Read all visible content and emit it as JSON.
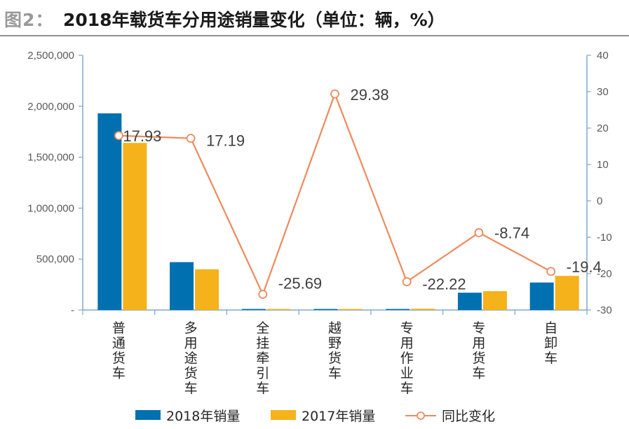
{
  "header": {
    "figure_label": "图2：",
    "figure_title": "2018年载货车分用途销量变化（单位：辆，%）"
  },
  "chart_data": {
    "type": "bar",
    "title": "2018年载货车分用途销量变化（单位：辆，%）",
    "categories": [
      "普通货车",
      "多用途货车",
      "全挂牵引车",
      "越野货车",
      "专用作业车",
      "专用货车",
      "自卸车"
    ],
    "series": [
      {
        "name": "2018年销量",
        "type": "bar",
        "axis": "left",
        "color": "#0070b0",
        "values": [
          1930000,
          470000,
          2000,
          8000,
          10000,
          170000,
          270000
        ]
      },
      {
        "name": "2017年销量",
        "type": "bar",
        "axis": "left",
        "color": "#f5b21a",
        "values": [
          1640000,
          400000,
          1500,
          6000,
          13000,
          185000,
          335000
        ]
      },
      {
        "name": "同比变化",
        "type": "line",
        "axis": "right",
        "color": "#ef8a5c",
        "values": [
          17.93,
          17.19,
          -25.69,
          29.38,
          -22.22,
          -8.74,
          -19.4
        ]
      }
    ],
    "data_labels": [
      "17.93",
      "17.19",
      "-25.69",
      "29.38",
      "-22.22",
      "-8.74",
      "-19.4"
    ],
    "y_left": {
      "min": 0,
      "max": 2500000,
      "ticks": [
        "-",
        "500,000",
        "1,000,000",
        "1,500,000",
        "2,000,000",
        "2,500,000"
      ]
    },
    "y_right": {
      "min": -30,
      "max": 40,
      "ticks": [
        "-30",
        "-20",
        "-10",
        "0",
        "10",
        "20",
        "30",
        "40"
      ]
    },
    "legend": [
      "2018年销量",
      "2017年销量",
      "同比变化"
    ],
    "legend_position": "bottom"
  }
}
